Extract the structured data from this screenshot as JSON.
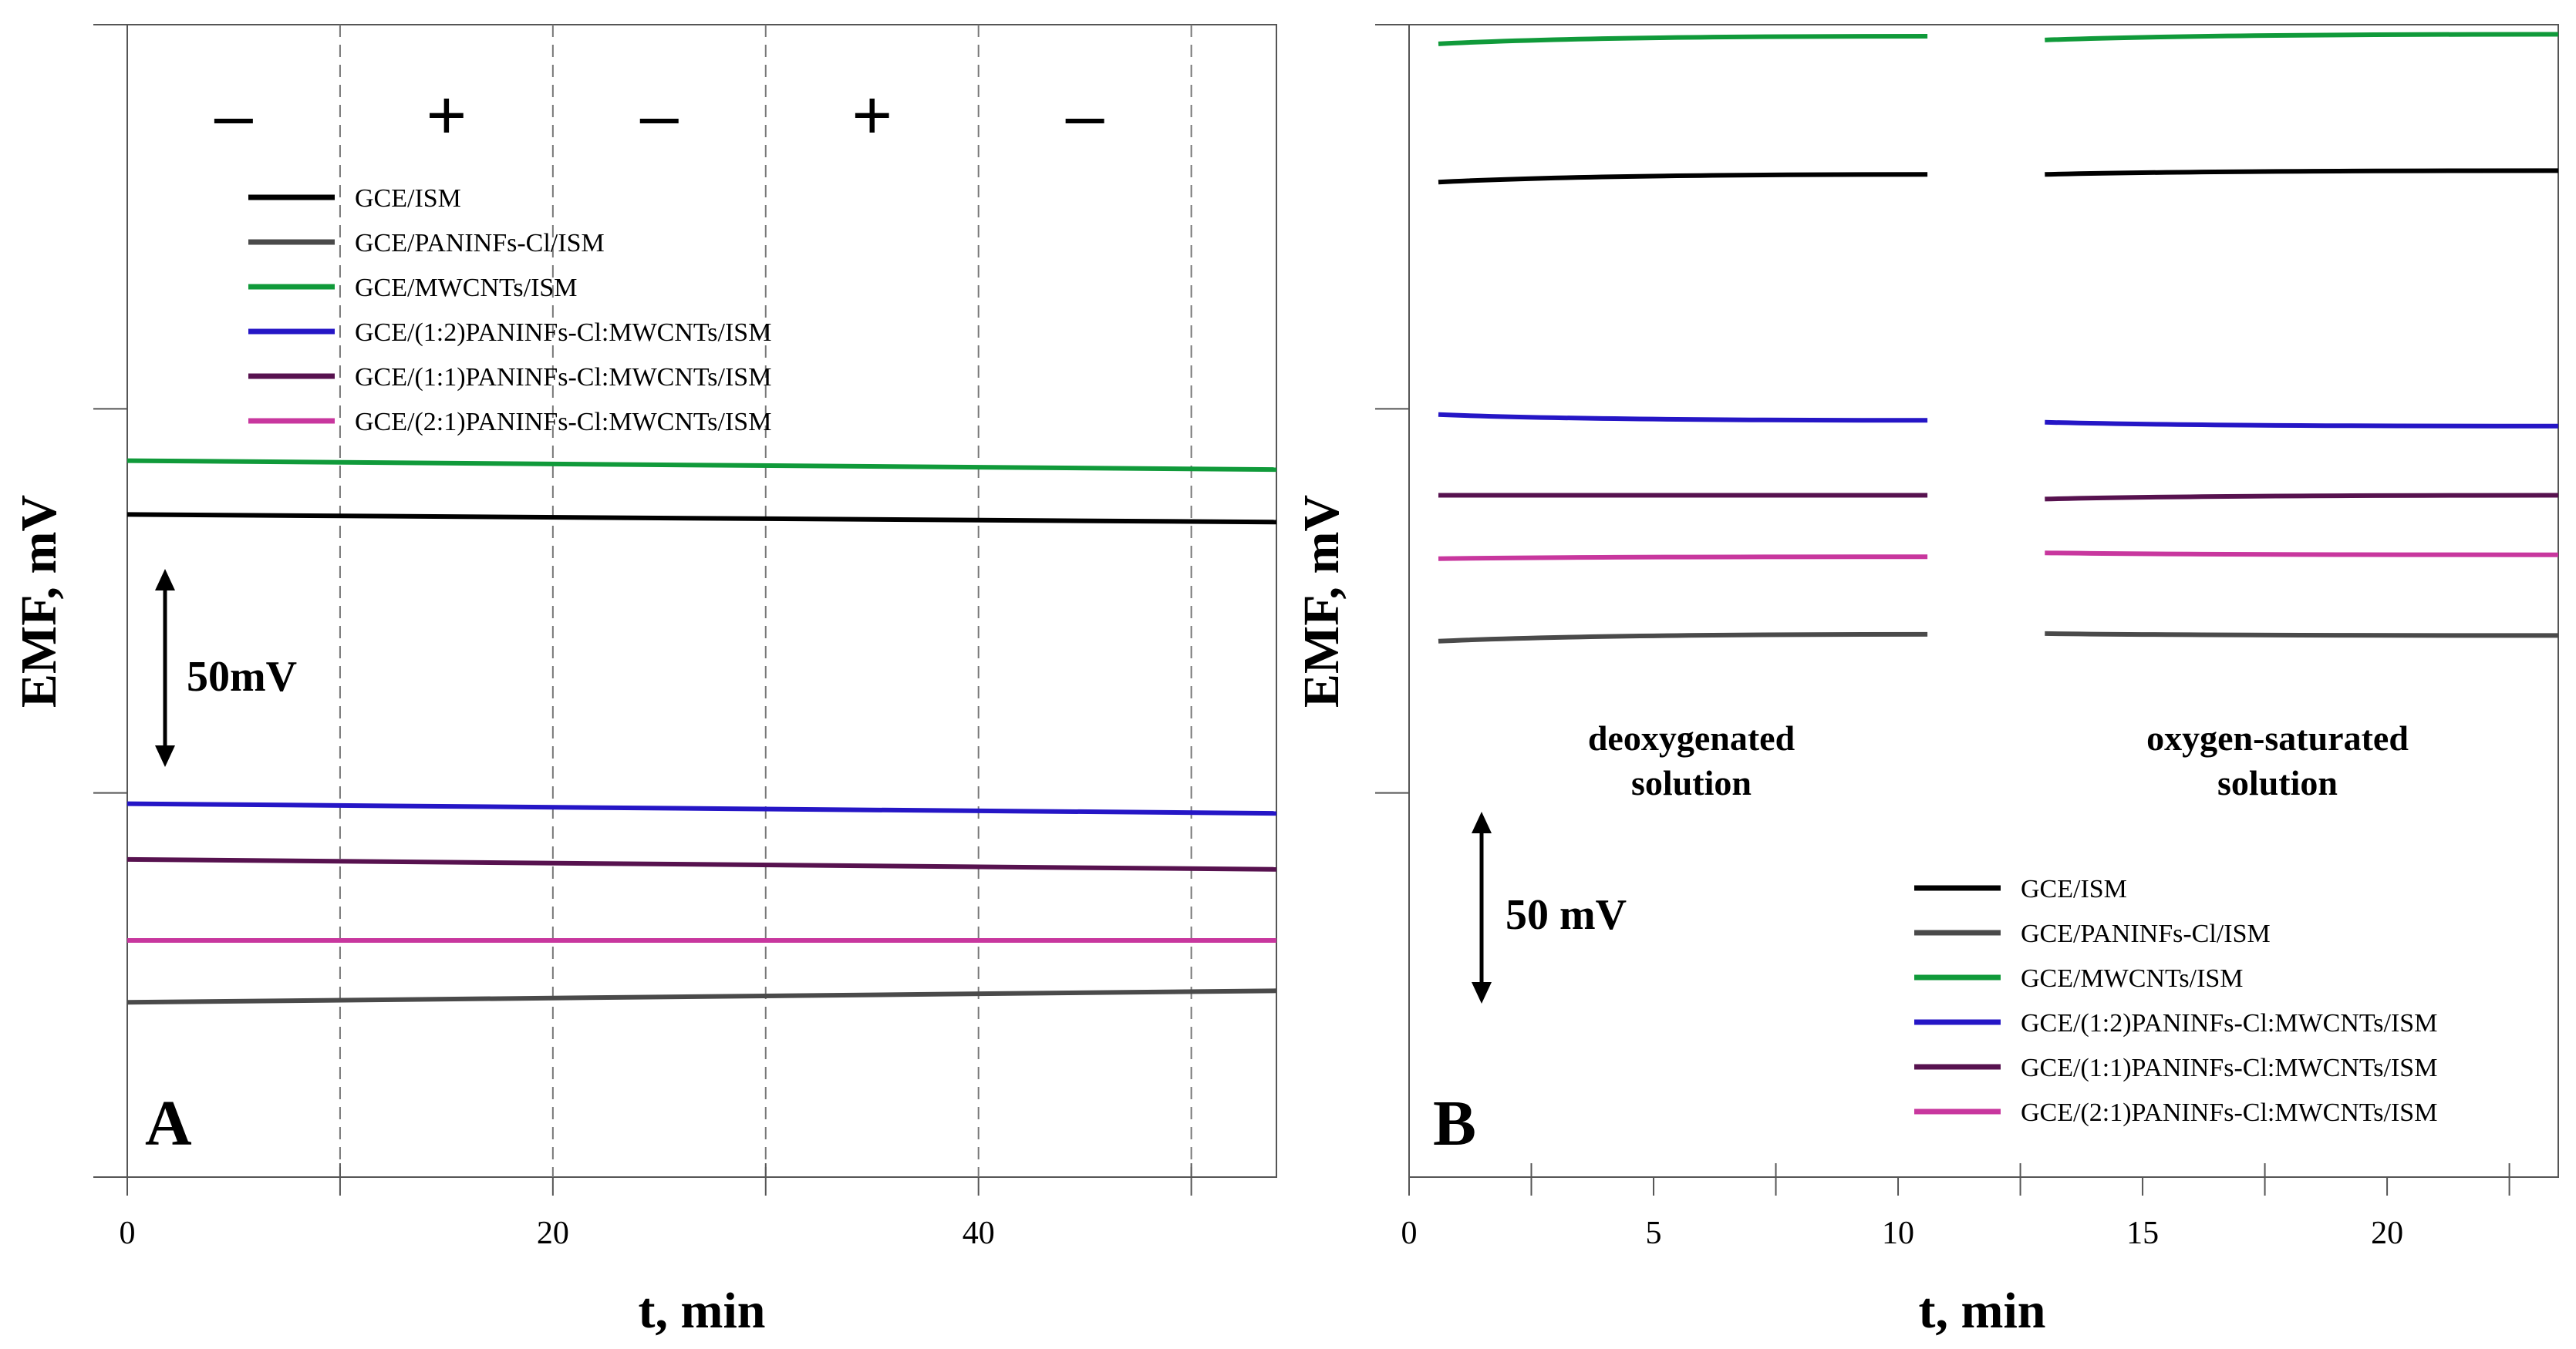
{
  "colors": {
    "GCE/ISM": "#000000",
    "GCE/PANINFs-Cl/ISM": "#4a4a4a",
    "GCE/MWCNTs/ISM": "#109a3a",
    "GCE/(1:2)PANINFs-Cl:MWCNTs/ISM": "#2516c6",
    "GCE/(1:1)PANINFs-Cl:MWCNTs/ISM": "#57124f",
    "GCE/(2:1)PANINFs-Cl:MWCNTs/ISM": "#c8379e"
  },
  "chart_data": [
    {
      "panel": "A",
      "type": "line",
      "xlabel": "t, min",
      "ylabel": "EMF, mV",
      "xlim": [
        0,
        54
      ],
      "ylim": [
        0,
        300
      ],
      "x_ticks": [
        0,
        20,
        40
      ],
      "x_minor_ticks": [
        10,
        30,
        50
      ],
      "y_ticks": [
        0,
        100,
        200,
        300
      ],
      "y_tick_labels_shown": false,
      "grid": "vertical dashed lines at 10, 20, 30, 40, 50",
      "polarization_signs": [
        "–",
        "+",
        "–",
        "+",
        "–"
      ],
      "polarization_sign_x": [
        5,
        15,
        25,
        35,
        45
      ],
      "scale_bar": {
        "label": "50mV",
        "span_mV": 50
      },
      "legend_position": "upper-left",
      "series": [
        {
          "name": "GCE/ISM",
          "x": [
            0,
            54
          ],
          "y": [
            172.5,
            170.5
          ]
        },
        {
          "name": "GCE/PANINFs-Cl/ISM",
          "x": [
            0,
            54
          ],
          "y": [
            45.5,
            48.5
          ]
        },
        {
          "name": "GCE/MWCNTs/ISM",
          "x": [
            0,
            54
          ],
          "y": [
            186.5,
            184.2
          ]
        },
        {
          "name": "GCE/(1:2)PANINFs-Cl:MWCNTs/ISM",
          "x": [
            0,
            54
          ],
          "y": [
            97.2,
            94.7
          ]
        },
        {
          "name": "GCE/(1:1)PANINFs-Cl:MWCNTs/ISM",
          "x": [
            0,
            54
          ],
          "y": [
            82.7,
            80.1
          ]
        },
        {
          "name": "GCE/(2:1)PANINFs-Cl:MWCNTs/ISM",
          "x": [
            0,
            54
          ],
          "y": [
            61.6,
            61.6
          ]
        }
      ]
    },
    {
      "panel": "B",
      "type": "line",
      "xlabel": "t, min",
      "ylabel": "EMF, mV",
      "xlim": [
        0,
        23.5
      ],
      "ylim": [
        0,
        300
      ],
      "x_ticks": [
        0,
        5,
        10,
        15,
        20
      ],
      "x_minor_ticks": [
        2.5,
        7.5,
        12.5,
        17.5,
        22.5
      ],
      "y_ticks": [
        100,
        200,
        300
      ],
      "y_tick_labels_shown": false,
      "annotations": [
        "deoxygenated",
        "solution",
        "oxygen-saturated",
        "solution"
      ],
      "scale_bar": {
        "label": "50 mV",
        "span_mV": 50
      },
      "legend_position": "lower-right",
      "segments": [
        {
          "condition": "deoxygenated solution",
          "x_range": [
            0.6,
            10.6
          ]
        },
        {
          "condition": "oxygen-saturated solution",
          "x_range": [
            13,
            23.5
          ]
        }
      ],
      "series": [
        {
          "name": "GCE/ISM",
          "x": [
            0.6,
            10.6,
            13,
            23.5
          ],
          "y": [
            259,
            261,
            261,
            262
          ]
        },
        {
          "name": "GCE/PANINFs-Cl/ISM",
          "x": [
            0.6,
            10.6,
            13,
            23.5
          ],
          "y": [
            139.5,
            141.3,
            141.5,
            141
          ]
        },
        {
          "name": "GCE/MWCNTs/ISM",
          "x": [
            0.6,
            10.6,
            13,
            23.5
          ],
          "y": [
            295,
            297,
            296,
            297.5
          ]
        },
        {
          "name": "GCE/(1:2)PANINFs-Cl:MWCNTs/ISM",
          "x": [
            0.6,
            10.6,
            13,
            23.5
          ],
          "y": [
            198.5,
            197,
            196.5,
            195.5
          ]
        },
        {
          "name": "GCE/(1:1)PANINFs-Cl:MWCNTs/ISM",
          "x": [
            0.6,
            10.6,
            13,
            23.5
          ],
          "y": [
            177.5,
            177.5,
            176.5,
            177.5
          ]
        },
        {
          "name": "GCE/(2:1)PANINFs-Cl:MWCNTs/ISM",
          "x": [
            0.6,
            10.6,
            13,
            23.5
          ],
          "y": [
            161,
            161.5,
            162.5,
            162
          ]
        }
      ]
    }
  ]
}
